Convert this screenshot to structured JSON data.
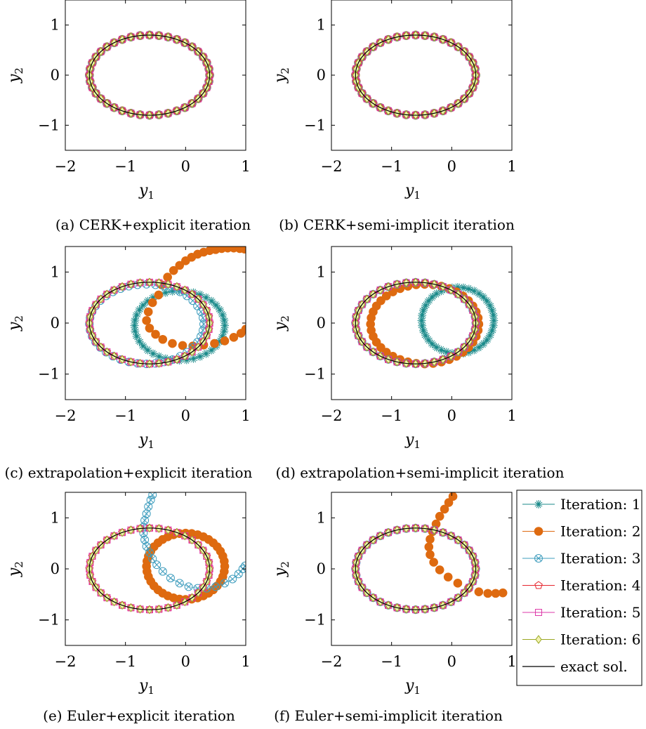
{
  "colors": {
    "iter1": "#1a8a8a",
    "iter2": "#de6a10",
    "iter3": "#3d9cbd",
    "iter4": "#e6262e",
    "iter5": "#de3aa8",
    "iter6": "#9aa822",
    "exact": "#000000"
  },
  "legend": {
    "entries": [
      {
        "key": "iter1",
        "label": "Iteration: 1",
        "marker": "asterisk"
      },
      {
        "key": "iter2",
        "label": "Iteration: 2",
        "marker": "filled-circle"
      },
      {
        "key": "iter3",
        "label": "Iteration: 3",
        "marker": "circle-x"
      },
      {
        "key": "iter4",
        "label": "Iteration: 4",
        "marker": "pentagon"
      },
      {
        "key": "iter5",
        "label": "Iteration: 5",
        "marker": "square"
      },
      {
        "key": "iter6",
        "label": "Iteration: 6",
        "marker": "diamond"
      },
      {
        "key": "exact",
        "label": "exact sol.",
        "marker": "none"
      }
    ]
  },
  "chart_data": [
    {
      "type": "scatter",
      "caption": "(a) CERK+explicit iteration",
      "xlabel": "y1",
      "ylabel": "y2",
      "xlim": [
        -2,
        1
      ],
      "ylim": [
        -1.5,
        1.5
      ],
      "xticks": [
        "−2",
        "−1",
        "0",
        "1"
      ],
      "yticks": [
        "−1",
        "0",
        "1"
      ],
      "series": [
        {
          "key": "iter1",
          "curve": "ellipse",
          "cx": -0.6,
          "cy": 0,
          "rx": 1.0,
          "ry": 0.8,
          "n": 40
        },
        {
          "key": "iter2",
          "curve": "ellipse",
          "cx": -0.6,
          "cy": 0,
          "rx": 1.0,
          "ry": 0.8,
          "n": 40
        },
        {
          "key": "iter3",
          "curve": "ellipse",
          "cx": -0.6,
          "cy": 0,
          "rx": 1.0,
          "ry": 0.8,
          "n": 40
        },
        {
          "key": "iter4",
          "curve": "ellipse",
          "cx": -0.6,
          "cy": 0,
          "rx": 1.0,
          "ry": 0.8,
          "n": 40
        },
        {
          "key": "iter5",
          "curve": "ellipse",
          "cx": -0.6,
          "cy": 0,
          "rx": 1.0,
          "ry": 0.8,
          "n": 40
        },
        {
          "key": "iter6",
          "curve": "ellipse",
          "cx": -0.6,
          "cy": 0,
          "rx": 1.0,
          "ry": 0.8,
          "n": 40
        },
        {
          "key": "exact",
          "curve": "ellipse",
          "cx": -0.6,
          "cy": 0,
          "rx": 1.0,
          "ry": 0.8,
          "n": 120
        }
      ]
    },
    {
      "type": "scatter",
      "caption": "(b) CERK+semi-implicit iteration",
      "xlabel": "y1",
      "ylabel": "y2",
      "xlim": [
        -2,
        1
      ],
      "ylim": [
        -1.5,
        1.5
      ],
      "xticks": [
        "−2",
        "−1",
        "0",
        "1"
      ],
      "yticks": [
        "−1",
        "0",
        "1"
      ],
      "series": [
        {
          "key": "iter1",
          "curve": "ellipse",
          "cx": -0.6,
          "cy": 0,
          "rx": 1.0,
          "ry": 0.8,
          "n": 40
        },
        {
          "key": "iter2",
          "curve": "ellipse",
          "cx": -0.6,
          "cy": 0,
          "rx": 1.0,
          "ry": 0.8,
          "n": 40
        },
        {
          "key": "iter3",
          "curve": "ellipse",
          "cx": -0.6,
          "cy": 0,
          "rx": 1.0,
          "ry": 0.8,
          "n": 40
        },
        {
          "key": "iter4",
          "curve": "ellipse",
          "cx": -0.6,
          "cy": 0,
          "rx": 1.0,
          "ry": 0.8,
          "n": 40
        },
        {
          "key": "iter5",
          "curve": "ellipse",
          "cx": -0.6,
          "cy": 0,
          "rx": 1.0,
          "ry": 0.8,
          "n": 40
        },
        {
          "key": "iter6",
          "curve": "ellipse",
          "cx": -0.6,
          "cy": 0,
          "rx": 1.0,
          "ry": 0.8,
          "n": 40
        },
        {
          "key": "exact",
          "curve": "ellipse",
          "cx": -0.6,
          "cy": 0,
          "rx": 1.0,
          "ry": 0.8,
          "n": 120
        }
      ]
    },
    {
      "type": "scatter",
      "caption": "(c) extrapolation+explicit iteration",
      "xlabel": "y1",
      "ylabel": "y2",
      "xlim": [
        -2,
        1
      ],
      "ylim": [
        -1.5,
        1.5
      ],
      "xticks": [
        "−2",
        "−1",
        "0",
        "1"
      ],
      "yticks": [
        "−1",
        "0",
        "1"
      ],
      "series": [
        {
          "key": "iter1",
          "curve": "ellipse",
          "cx": -0.1,
          "cy": -0.05,
          "rx": 0.75,
          "ry": 0.68,
          "n": 40
        },
        {
          "key": "iter2",
          "curve": "points",
          "pts": [
            [
              -0.4,
              0.75
            ],
            [
              -0.3,
              0.9
            ],
            [
              -0.2,
              1.03
            ],
            [
              -0.1,
              1.13
            ],
            [
              0.0,
              1.22
            ],
            [
              0.1,
              1.29
            ],
            [
              0.2,
              1.35
            ],
            [
              0.3,
              1.39
            ],
            [
              0.4,
              1.42
            ],
            [
              0.5,
              1.44
            ],
            [
              0.6,
              1.46
            ],
            [
              0.7,
              1.47
            ],
            [
              0.8,
              1.47
            ],
            [
              0.9,
              1.46
            ],
            [
              0.98,
              1.45
            ],
            [
              -0.45,
              0.55
            ],
            [
              -0.55,
              0.4
            ],
            [
              -0.62,
              0.22
            ],
            [
              -0.65,
              0.05
            ],
            [
              -0.6,
              -0.1
            ],
            [
              -0.5,
              -0.22
            ],
            [
              -0.38,
              -0.32
            ],
            [
              -0.22,
              -0.4
            ],
            [
              -0.05,
              -0.44
            ],
            [
              0.12,
              -0.45
            ],
            [
              0.3,
              -0.43
            ],
            [
              0.48,
              -0.4
            ],
            [
              0.65,
              -0.35
            ],
            [
              0.8,
              -0.28
            ],
            [
              0.92,
              -0.2
            ],
            [
              1.0,
              -0.12
            ]
          ]
        },
        {
          "key": "iter3",
          "curve": "ellipse",
          "cx": -0.65,
          "cy": -0.02,
          "rx": 0.95,
          "ry": 0.78,
          "n": 40
        },
        {
          "key": "iter4",
          "curve": "ellipse",
          "cx": -0.6,
          "cy": 0,
          "rx": 1.0,
          "ry": 0.8,
          "n": 40
        },
        {
          "key": "iter5",
          "curve": "ellipse",
          "cx": -0.6,
          "cy": 0,
          "rx": 1.0,
          "ry": 0.8,
          "n": 40
        },
        {
          "key": "iter6",
          "curve": "ellipse",
          "cx": -0.6,
          "cy": 0,
          "rx": 1.0,
          "ry": 0.8,
          "n": 40
        },
        {
          "key": "exact",
          "curve": "ellipse",
          "cx": -0.6,
          "cy": 0,
          "rx": 1.0,
          "ry": 0.8,
          "n": 120
        }
      ]
    },
    {
      "type": "scatter",
      "caption": "(d) extrapolation+semi-implicit iteration",
      "xlabel": "y1",
      "ylabel": "y2",
      "xlim": [
        -2,
        1
      ],
      "ylim": [
        -1.5,
        1.5
      ],
      "xticks": [
        "−2",
        "−1",
        "0",
        "1"
      ],
      "yticks": [
        "−1",
        "0",
        "1"
      ],
      "series": [
        {
          "key": "iter1",
          "curve": "ellipse",
          "cx": 0.1,
          "cy": 0.05,
          "rx": 0.6,
          "ry": 0.65,
          "n": 40
        },
        {
          "key": "iter2",
          "curve": "ellipse",
          "cx": -0.45,
          "cy": -0.02,
          "rx": 0.9,
          "ry": 0.78,
          "n": 40
        },
        {
          "key": "iter3",
          "curve": "ellipse",
          "cx": -0.6,
          "cy": 0,
          "rx": 1.0,
          "ry": 0.8,
          "n": 40
        },
        {
          "key": "iter4",
          "curve": "ellipse",
          "cx": -0.6,
          "cy": 0,
          "rx": 1.0,
          "ry": 0.8,
          "n": 40
        },
        {
          "key": "iter5",
          "curve": "ellipse",
          "cx": -0.6,
          "cy": 0,
          "rx": 1.0,
          "ry": 0.8,
          "n": 40
        },
        {
          "key": "iter6",
          "curve": "ellipse",
          "cx": -0.6,
          "cy": 0,
          "rx": 1.0,
          "ry": 0.8,
          "n": 40
        },
        {
          "key": "exact",
          "curve": "ellipse",
          "cx": -0.6,
          "cy": 0,
          "rx": 1.0,
          "ry": 0.8,
          "n": 120
        }
      ]
    },
    {
      "type": "scatter",
      "caption": "(e) Euler+explicit iteration",
      "xlabel": "y1",
      "ylabel": "y2",
      "xlim": [
        -2,
        1
      ],
      "ylim": [
        -1.5,
        1.5
      ],
      "xticks": [
        "−2",
        "−1",
        "0",
        "1"
      ],
      "yticks": [
        "−1",
        "0",
        "1"
      ],
      "series": [
        {
          "key": "iter2",
          "curve": "ellipse",
          "cx": 0.0,
          "cy": 0.05,
          "rx": 0.65,
          "ry": 0.65,
          "n": 40
        },
        {
          "key": "iter3",
          "curve": "points",
          "pts": [
            [
              -0.55,
              1.45
            ],
            [
              -0.58,
              1.35
            ],
            [
              -0.62,
              1.22
            ],
            [
              -0.65,
              1.08
            ],
            [
              -0.68,
              0.95
            ],
            [
              -0.7,
              0.82
            ],
            [
              -0.7,
              0.7
            ],
            [
              -0.68,
              0.57
            ],
            [
              -0.65,
              0.44
            ],
            [
              -0.6,
              0.32
            ],
            [
              -0.55,
              0.2
            ],
            [
              -0.48,
              0.08
            ],
            [
              -0.38,
              -0.05
            ],
            [
              -0.25,
              -0.18
            ],
            [
              -0.1,
              -0.28
            ],
            [
              0.05,
              -0.35
            ],
            [
              0.2,
              -0.38
            ],
            [
              0.35,
              -0.38
            ],
            [
              0.5,
              -0.35
            ],
            [
              0.65,
              -0.28
            ],
            [
              0.78,
              -0.2
            ],
            [
              0.88,
              -0.1
            ],
            [
              0.95,
              0.0
            ],
            [
              0.99,
              0.06
            ]
          ]
        },
        {
          "key": "iter4",
          "curve": "ellipse",
          "cx": -0.6,
          "cy": 0,
          "rx": 1.0,
          "ry": 0.8,
          "n": 40
        },
        {
          "key": "iter5",
          "curve": "ellipse",
          "cx": -0.6,
          "cy": 0,
          "rx": 1.0,
          "ry": 0.8,
          "n": 40
        },
        {
          "key": "iter6",
          "curve": "ellipse",
          "cx": -0.6,
          "cy": 0,
          "rx": 1.0,
          "ry": 0.8,
          "n": 40
        },
        {
          "key": "exact",
          "curve": "ellipse",
          "cx": -0.6,
          "cy": 0,
          "rx": 1.0,
          "ry": 0.8,
          "n": 120
        }
      ]
    },
    {
      "type": "scatter",
      "caption": "(f) Euler+semi-implicit iteration",
      "xlabel": "y1",
      "ylabel": "y2",
      "xlim": [
        -2,
        1
      ],
      "ylim": [
        -1.5,
        1.5
      ],
      "xticks": [
        "−2",
        "−1",
        "0",
        "1"
      ],
      "yticks": [
        "−1",
        "0",
        "1"
      ],
      "series": [
        {
          "key": "iter2",
          "curve": "points",
          "pts": [
            [
              0.02,
              1.42
            ],
            [
              -0.05,
              1.3
            ],
            [
              -0.12,
              1.17
            ],
            [
              -0.2,
              1.03
            ],
            [
              -0.26,
              0.88
            ],
            [
              -0.32,
              0.73
            ],
            [
              -0.36,
              0.58
            ],
            [
              -0.38,
              0.43
            ],
            [
              -0.36,
              0.28
            ],
            [
              -0.3,
              0.13
            ],
            [
              -0.2,
              -0.02
            ],
            [
              -0.06,
              -0.16
            ],
            [
              0.1,
              -0.28
            ],
            [
              0.28,
              -0.38
            ],
            [
              0.45,
              -0.45
            ],
            [
              0.6,
              -0.48
            ],
            [
              0.73,
              -0.48
            ],
            [
              0.85,
              -0.47
            ]
          ]
        },
        {
          "key": "iter3",
          "curve": "ellipse",
          "cx": -0.6,
          "cy": 0,
          "rx": 1.0,
          "ry": 0.8,
          "n": 40
        },
        {
          "key": "iter4",
          "curve": "ellipse",
          "cx": -0.6,
          "cy": 0,
          "rx": 1.0,
          "ry": 0.8,
          "n": 40
        },
        {
          "key": "iter5",
          "curve": "ellipse",
          "cx": -0.6,
          "cy": 0,
          "rx": 1.0,
          "ry": 0.8,
          "n": 40
        },
        {
          "key": "iter6",
          "curve": "ellipse",
          "cx": -0.6,
          "cy": 0,
          "rx": 1.0,
          "ry": 0.8,
          "n": 40
        },
        {
          "key": "exact",
          "curve": "ellipse",
          "cx": -0.6,
          "cy": 0,
          "rx": 1.0,
          "ry": 0.8,
          "n": 120
        }
      ]
    }
  ]
}
